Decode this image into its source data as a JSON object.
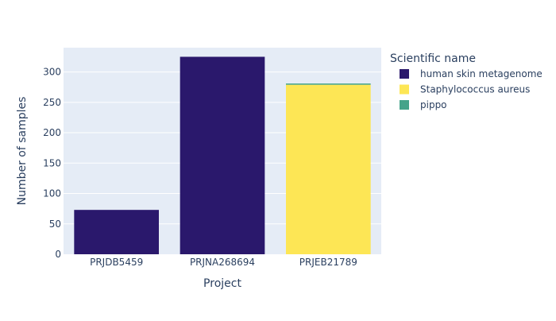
{
  "chart_data": {
    "type": "bar",
    "stacked": true,
    "xlabel": "Project",
    "ylabel": "Number of samples",
    "categories": [
      "PRJDB5459",
      "PRJNA268694",
      "PRJEB21789"
    ],
    "ylim": [
      0,
      340
    ],
    "yticks": [
      0,
      50,
      100,
      150,
      200,
      250,
      300
    ],
    "grid": true,
    "legend": {
      "title": "Scientific name",
      "placement": "right"
    },
    "series": [
      {
        "name": "human skin metagenome",
        "color": "#2a186c",
        "values": [
          73,
          325,
          0
        ]
      },
      {
        "name": "Staphylococcus aureus",
        "color": "#fde655",
        "values": [
          0,
          0,
          279
        ]
      },
      {
        "name": "pippo",
        "color": "#45a38a",
        "values": [
          0,
          0,
          2
        ]
      }
    ],
    "colors": {
      "plot_background": "#e5ecf6",
      "gridline": "#ffffff",
      "text": "#2a3f5f"
    }
  }
}
